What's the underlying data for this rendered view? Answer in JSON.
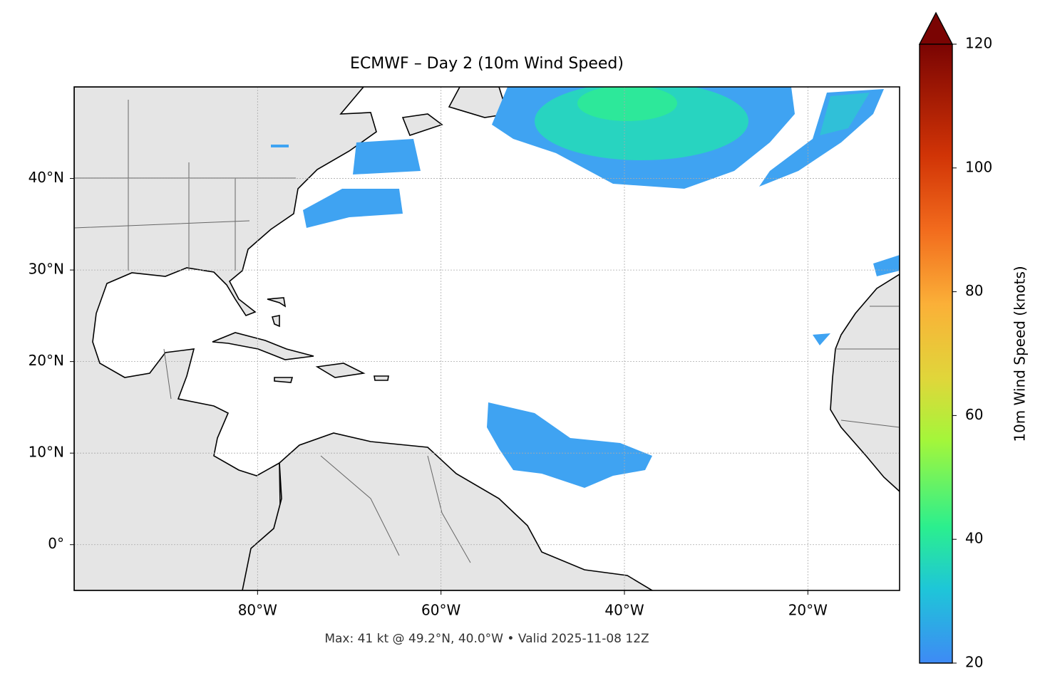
{
  "chart_data": {
    "type": "map",
    "title": "ECMWF – Day 2 (10m Wind Speed)",
    "annotation": "Max: 41 kt @ 49.2°N, 40.0°W • Valid 2025-11-08 12Z",
    "xlim": [
      -100,
      -10
    ],
    "ylim": [
      -5,
      50
    ],
    "xticks": [
      {
        "value": -80,
        "label": "80°W"
      },
      {
        "value": -60,
        "label": "60°W"
      },
      {
        "value": -40,
        "label": "40°W"
      },
      {
        "value": -20,
        "label": "20°W"
      }
    ],
    "yticks": [
      {
        "value": 0,
        "label": "0°"
      },
      {
        "value": 10,
        "label": "10°N"
      },
      {
        "value": 20,
        "label": "20°N"
      },
      {
        "value": 30,
        "label": "30°N"
      },
      {
        "value": 40,
        "label": "40°N"
      }
    ],
    "grid": true,
    "colorbar": {
      "label": "10m Wind Speed (knots)",
      "lim": [
        20,
        120
      ],
      "ticks": [
        20,
        40,
        60,
        80,
        100,
        120
      ]
    }
  }
}
